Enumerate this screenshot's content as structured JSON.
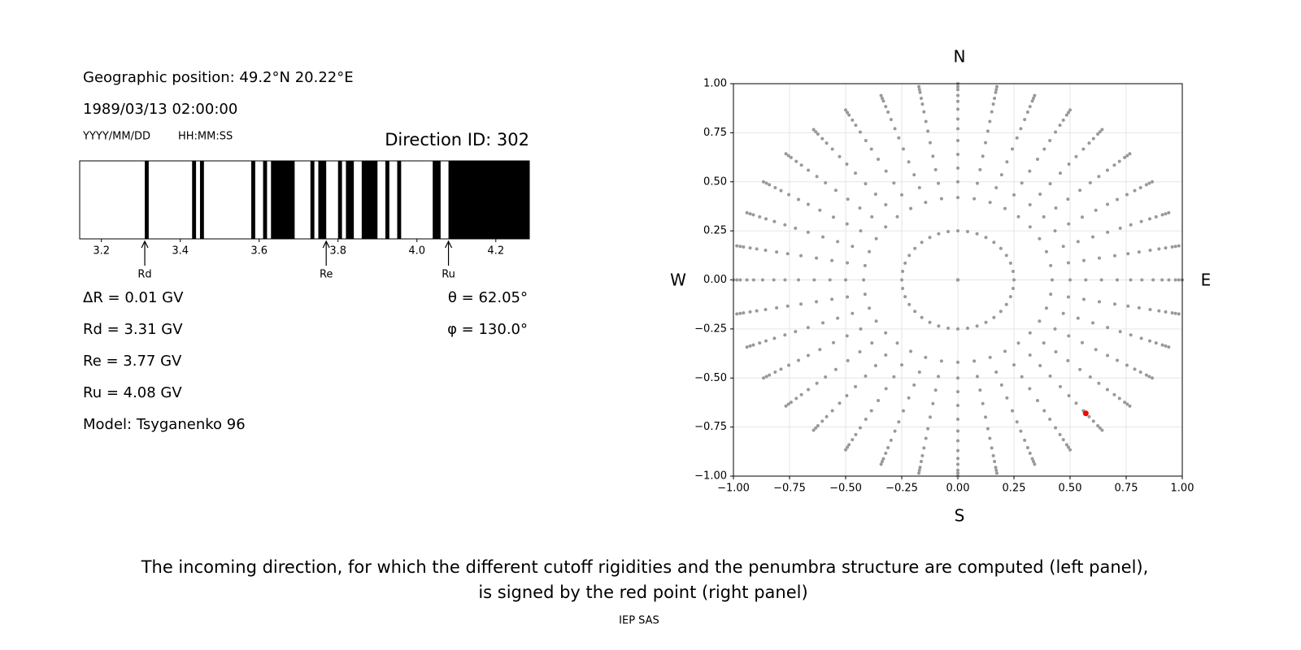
{
  "chart_data": [
    {
      "type": "penumbra",
      "geo": "Geographic position: 49.2°N 20.22°E",
      "datetime": "1989/03/13 02:00:00",
      "date_format": "YYYY/MM/DD",
      "time_format": "HH:MM:SS",
      "direction": "Direction ID: 302",
      "color": "#000000",
      "intervals": [
        [
          3.31,
          3.32
        ],
        [
          3.43,
          3.44
        ],
        [
          3.45,
          3.46
        ],
        [
          3.58,
          3.59
        ],
        [
          3.61,
          3.62
        ],
        [
          3.63,
          3.69
        ],
        [
          3.73,
          3.74
        ],
        [
          3.75,
          3.77
        ],
        [
          3.8,
          3.81
        ],
        [
          3.82,
          3.84
        ],
        [
          3.86,
          3.9
        ],
        [
          3.92,
          3.93
        ],
        [
          3.95,
          3.96
        ],
        [
          4.04,
          4.06
        ],
        [
          4.08,
          4.29
        ]
      ],
      "xlim": [
        3.145,
        4.285
      ],
      "xticks": [
        3.2,
        3.4,
        3.6,
        3.8,
        {
          "value": 4,
          "label": "4.0"
        },
        4.2
      ],
      "markers": [
        {
          "name": "Rd",
          "value": 3.31
        },
        {
          "name": "Re",
          "value": 3.77
        },
        {
          "name": "Ru",
          "value": 4.08
        }
      ],
      "info_left": [
        "ΔR = 0.01 GV",
        "Rd = 3.31 GV",
        "Re = 3.77 GV",
        "Ru = 4.08 GV",
        "Model: Tsyganenko 96"
      ],
      "info_right": [
        "θ = 62.05°",
        "φ = 130.0°"
      ]
    },
    {
      "type": "polar-scatter",
      "directions": {
        "azimuth": [
          0,
          10,
          20,
          30,
          40,
          50,
          60,
          70,
          80,
          90,
          100,
          110,
          120,
          130,
          140,
          150,
          160,
          170,
          180,
          190,
          200,
          210,
          220,
          230,
          240,
          250,
          260,
          270,
          280,
          290,
          300,
          310,
          320,
          330,
          340,
          350
        ],
        "r": [
          0,
          0.25,
          0.42,
          0.5,
          0.57,
          0.64,
          0.71,
          0.77,
          0.82,
          0.87,
          0.91,
          0.94,
          0.97,
          0.985,
          1.0
        ]
      },
      "color": "#999999",
      "highlight": {
        "x": 0.57,
        "y": -0.68,
        "color": "#ff0000"
      },
      "xlim": [
        -1,
        1
      ],
      "ylim": [
        -1,
        1
      ],
      "xticks": [
        {
          "value": -1,
          "label": "−1.00"
        },
        {
          "value": -0.75,
          "label": "−0.75"
        },
        {
          "value": -0.5,
          "label": "−0.50"
        },
        {
          "value": -0.25,
          "label": "−0.25"
        },
        {
          "value": 0,
          "label": "0.00"
        },
        {
          "value": 0.25,
          "label": "0.25"
        },
        {
          "value": 0.5,
          "label": "0.50"
        },
        {
          "value": 0.75,
          "label": "0.75"
        },
        {
          "value": 1,
          "label": "1.00"
        }
      ],
      "yticks": [
        {
          "value": -1,
          "label": "−1.00"
        },
        {
          "value": -0.75,
          "label": "−0.75"
        },
        {
          "value": -0.5,
          "label": "−0.50"
        },
        {
          "value": -0.25,
          "label": "−0.25"
        },
        {
          "value": 0,
          "label": "0.00"
        },
        {
          "value": 0.25,
          "label": "0.25"
        },
        {
          "value": 0.5,
          "label": "0.50"
        },
        {
          "value": 0.75,
          "label": "0.75"
        },
        {
          "value": 1,
          "label": "1.00"
        }
      ],
      "grid": true,
      "compass": {
        "north": "N",
        "south": "S",
        "west": "W",
        "east": "E"
      }
    }
  ],
  "caption": [
    "The incoming direction, for which the different cutoff rigidities and the penumbra structure are computed (left panel),",
    "is signed by the red point (right panel)"
  ],
  "footer": "IEP SAS"
}
